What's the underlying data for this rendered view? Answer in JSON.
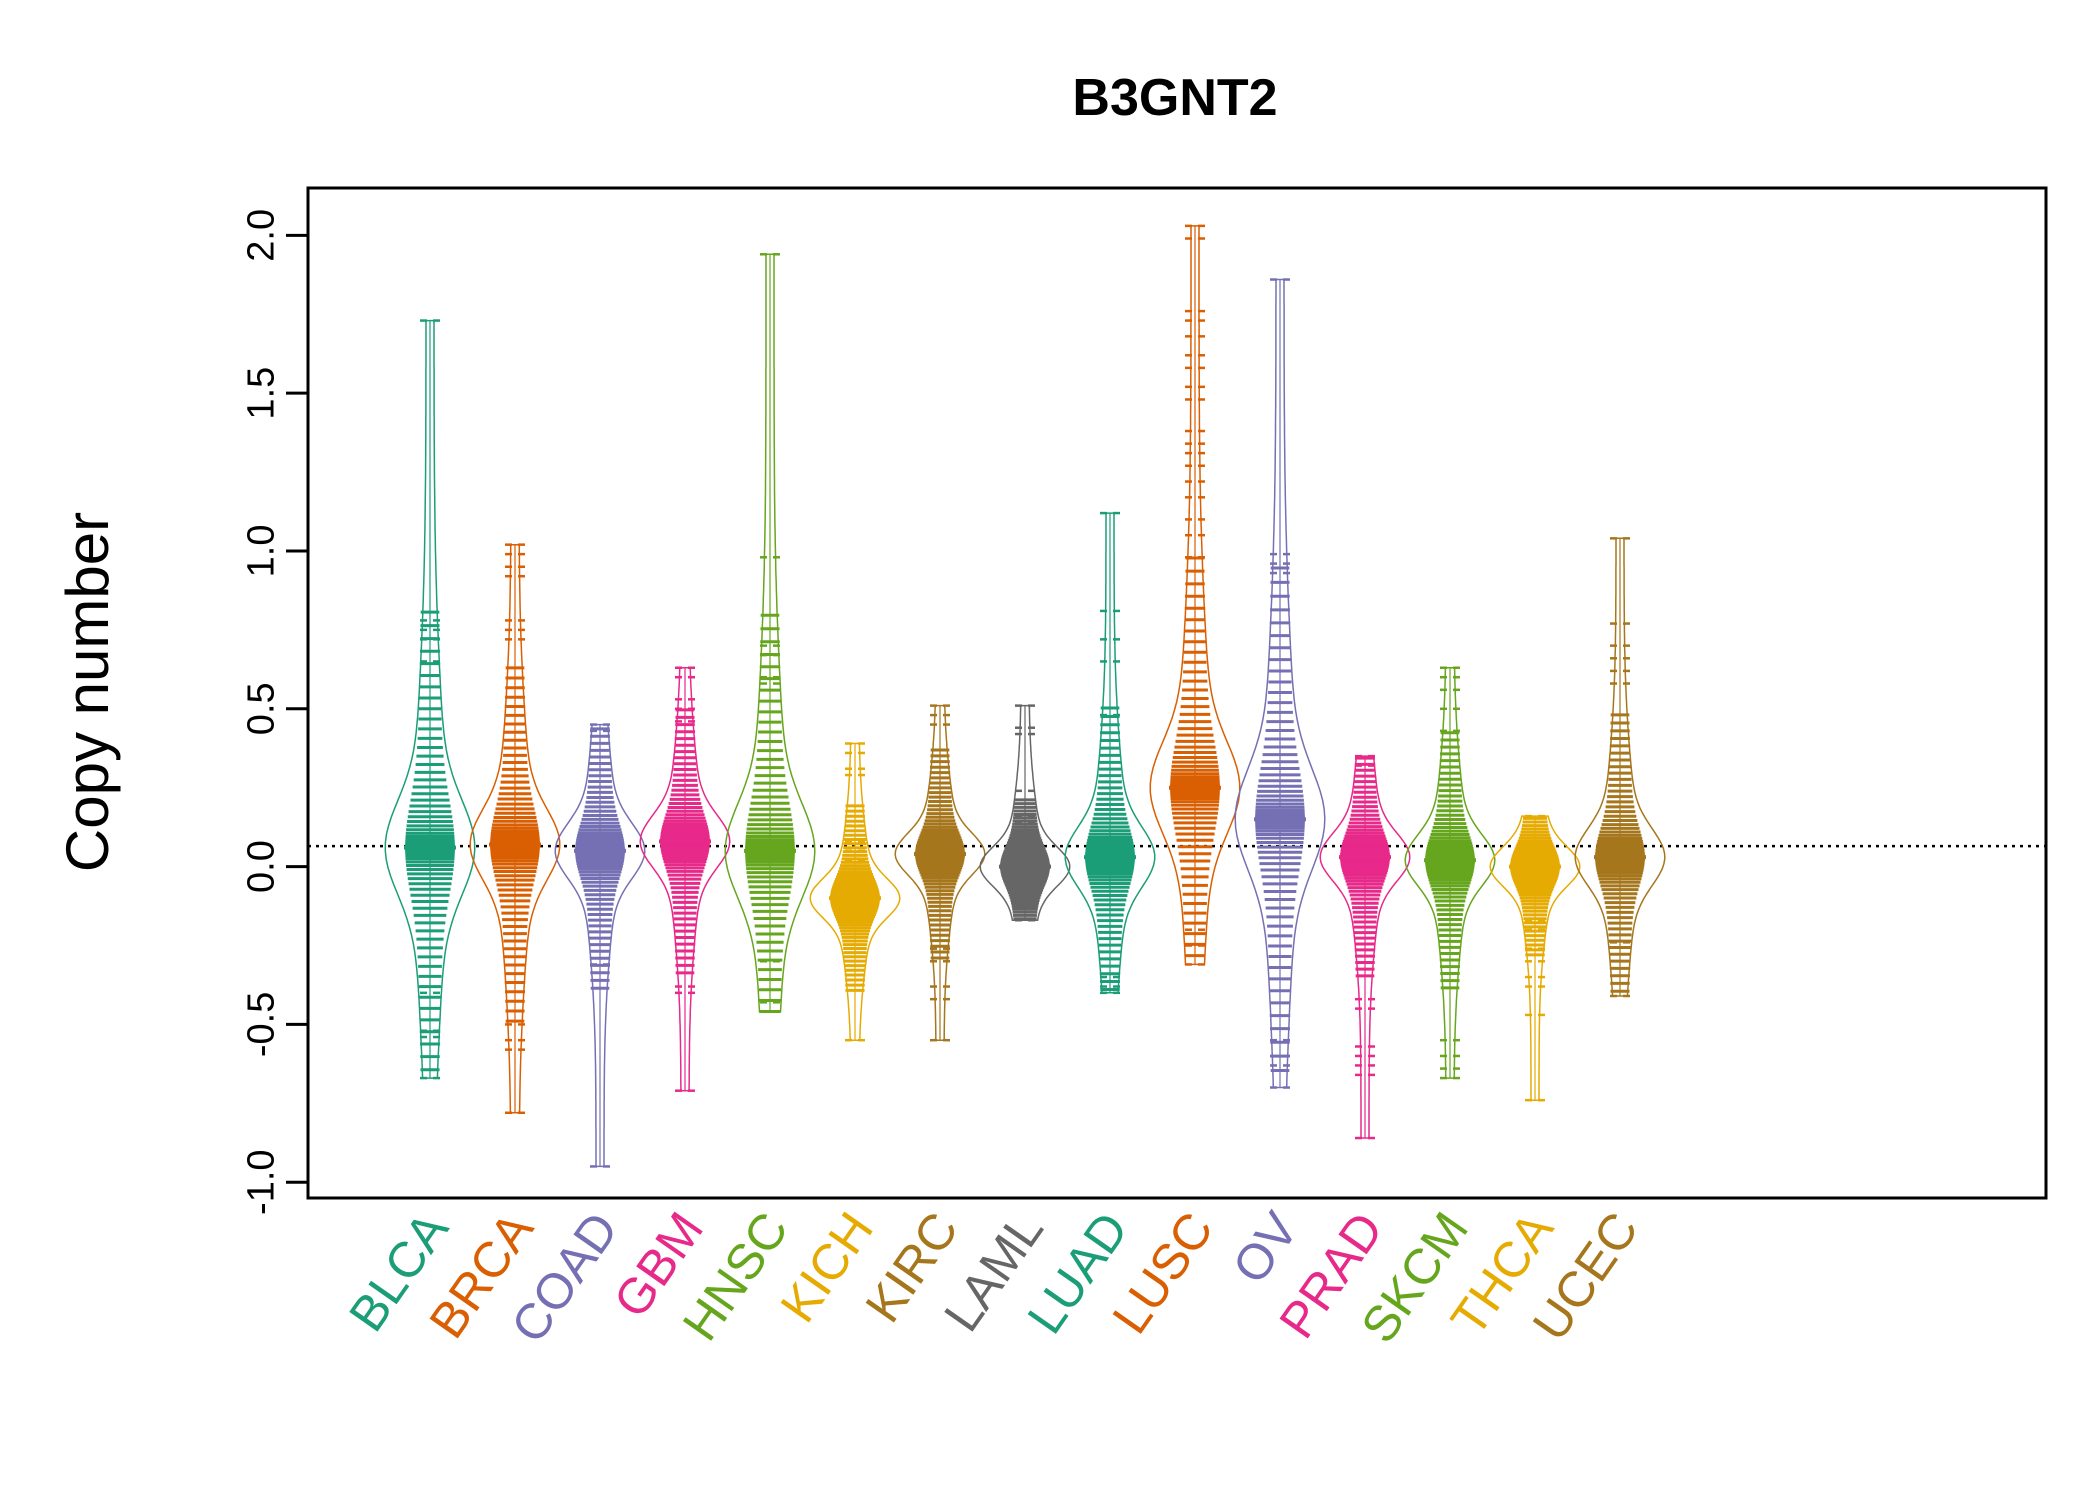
{
  "chart_data": {
    "type": "beanplot",
    "title": "B3GNT2",
    "xlabel": "",
    "ylabel": "Copy number",
    "ylim": [
      -1.05,
      2.15
    ],
    "yticks": [
      -1.0,
      -0.5,
      0.0,
      0.5,
      1.0,
      1.5,
      2.0
    ],
    "ytick_labels": [
      "-1.0",
      "-0.5",
      "0.0",
      "0.5",
      "1.0",
      "1.5",
      "2.0"
    ],
    "reference_line": 0.065,
    "grid": false,
    "legend": "none",
    "categories": [
      "BLCA",
      "BRCA",
      "COAD",
      "GBM",
      "HNSC",
      "KICH",
      "KIRC",
      "LAML",
      "LUAD",
      "LUSC",
      "OV",
      "PRAD",
      "SKCM",
      "THCA",
      "UCEC"
    ],
    "colors": [
      "#1b9e77",
      "#d95f02",
      "#7570b3",
      "#e7298a",
      "#66a61e",
      "#e6ab02",
      "#a6761d",
      "#666666",
      "#1b9e77",
      "#d95f02",
      "#7570b3",
      "#e7298a",
      "#66a61e",
      "#e6ab02",
      "#a6761d"
    ],
    "series": [
      {
        "category": "BLCA",
        "min": -0.67,
        "max": 1.73,
        "mean": 0.06,
        "outliers": [
          1.73,
          0.78,
          0.75,
          0.72,
          0.65,
          -0.38,
          -0.4,
          -0.52,
          -0.54,
          -0.67
        ]
      },
      {
        "category": "BRCA",
        "min": -0.78,
        "max": 1.02,
        "mean": 0.07,
        "outliers": [
          1.02,
          0.99,
          0.95,
          0.92,
          0.78,
          0.75,
          0.72,
          -0.5,
          -0.55,
          -0.58,
          -0.78
        ]
      },
      {
        "category": "COAD",
        "min": -0.95,
        "max": 0.45,
        "mean": 0.05,
        "outliers": [
          0.45,
          0.43,
          -0.31,
          -0.95
        ]
      },
      {
        "category": "GBM",
        "min": -0.71,
        "max": 0.63,
        "mean": 0.08,
        "outliers": [
          0.63,
          0.6,
          0.53,
          0.5,
          0.46,
          -0.38,
          -0.4,
          -0.71
        ]
      },
      {
        "category": "HNSC",
        "min": -0.46,
        "max": 1.94,
        "mean": 0.05,
        "outliers": [
          1.94,
          0.98,
          0.7,
          0.67,
          0.6,
          0.58,
          -0.3,
          -0.43,
          -0.46
        ]
      },
      {
        "category": "KICH",
        "min": -0.55,
        "max": 0.39,
        "mean": -0.1,
        "outliers": [
          0.39,
          0.36,
          0.31,
          0.29,
          0.13,
          0.08,
          0.05,
          0.02,
          -0.18,
          -0.55
        ]
      },
      {
        "category": "KIRC",
        "min": -0.55,
        "max": 0.51,
        "mean": 0.04,
        "outliers": [
          0.51,
          0.48,
          0.45,
          -0.26,
          -0.3,
          -0.38,
          -0.42,
          -0.55
        ]
      },
      {
        "category": "LAML",
        "min": -0.17,
        "max": 0.51,
        "mean": 0.0,
        "outliers": [
          0.51,
          0.44,
          0.42,
          0.24,
          0.16,
          0.14,
          -0.17
        ]
      },
      {
        "category": "LUAD",
        "min": -0.4,
        "max": 1.12,
        "mean": 0.03,
        "outliers": [
          1.12,
          0.81,
          0.72,
          0.65,
          0.48,
          -0.35,
          -0.38,
          -0.4
        ]
      },
      {
        "category": "LUSC",
        "min": -0.31,
        "max": 2.03,
        "mean": 0.25,
        "outliers": [
          2.03,
          1.99,
          1.76,
          1.73,
          1.68,
          1.62,
          1.58,
          1.52,
          1.48,
          1.38,
          1.34,
          1.31,
          1.27,
          1.22,
          1.17,
          1.1,
          1.05,
          0.98,
          -0.2,
          -0.25,
          -0.31
        ]
      },
      {
        "category": "OV",
        "min": -0.7,
        "max": 1.86,
        "mean": 0.15,
        "outliers": [
          1.86,
          0.99,
          0.96,
          0.93,
          -0.55,
          -0.6,
          -0.63,
          -0.7
        ]
      },
      {
        "category": "PRAD",
        "min": -0.86,
        "max": 0.35,
        "mean": 0.03,
        "outliers": [
          0.35,
          0.32,
          -0.42,
          -0.45,
          -0.57,
          -0.6,
          -0.63,
          -0.66,
          -0.86
        ]
      },
      {
        "category": "SKCM",
        "min": -0.67,
        "max": 0.63,
        "mean": 0.02,
        "outliers": [
          0.63,
          0.6,
          0.56,
          0.5,
          0.43,
          -0.55,
          -0.6,
          -0.64,
          -0.67
        ]
      },
      {
        "category": "THCA",
        "min": -0.74,
        "max": 0.16,
        "mean": 0.0,
        "outliers": [
          0.16,
          0.08,
          -0.17,
          -0.2,
          -0.26,
          -0.3,
          -0.35,
          -0.38,
          -0.47,
          -0.74
        ]
      },
      {
        "category": "UCEC",
        "min": -0.41,
        "max": 1.04,
        "mean": 0.03,
        "outliers": [
          1.04,
          0.77,
          0.7,
          0.66,
          0.62,
          0.58,
          -0.24,
          -0.41
        ]
      }
    ]
  }
}
